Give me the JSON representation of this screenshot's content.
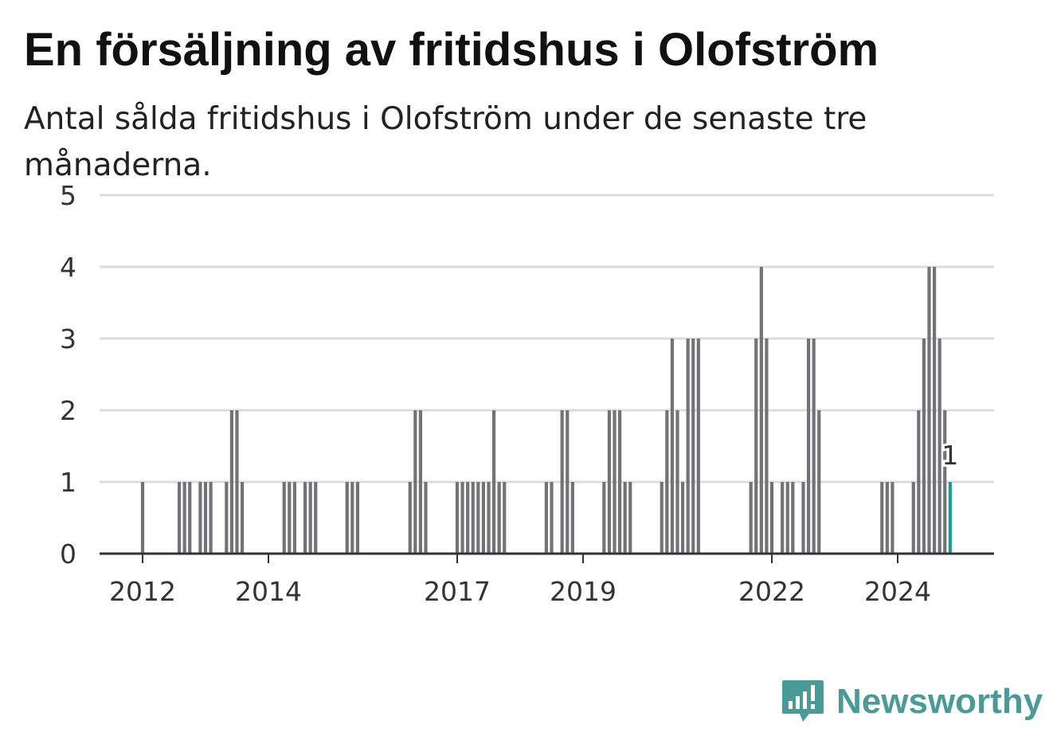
{
  "title": "En försäljning av fritidshus i Olofström",
  "subtitle": "Antal sålda fritidshus i Olofström under de senaste tre månaderna.",
  "brand": {
    "name": "Newsworthy",
    "icon": "newsworthy-logo-icon",
    "color": "#4a9a98"
  },
  "colors": {
    "bar": "#737276",
    "highlight": "#1a9e96",
    "grid": "#dddddd",
    "axis": "#333333"
  },
  "chart_data": {
    "type": "bar",
    "title": "En försäljning av fritidshus i Olofström",
    "subtitle": "Antal sålda fritidshus i Olofström under de senaste tre månaderna.",
    "xlabel": "",
    "ylabel": "",
    "ylim": [
      0,
      5
    ],
    "yticks": [
      0,
      1,
      2,
      3,
      4,
      5
    ],
    "xticks": [
      "2012",
      "2014",
      "2017",
      "2019",
      "2022",
      "2024"
    ],
    "grid": true,
    "legend": "none",
    "series": [
      {
        "values_by_month": [
          {
            "x": "2012-01",
            "y": 1
          },
          {
            "x": "2012-08",
            "y": 1
          },
          {
            "x": "2012-09",
            "y": 1
          },
          {
            "x": "2012-10",
            "y": 1
          },
          {
            "x": "2012-12",
            "y": 1
          },
          {
            "x": "2013-01",
            "y": 1
          },
          {
            "x": "2013-02",
            "y": 1
          },
          {
            "x": "2013-05",
            "y": 1
          },
          {
            "x": "2013-06",
            "y": 2
          },
          {
            "x": "2013-07",
            "y": 2
          },
          {
            "x": "2013-08",
            "y": 1
          },
          {
            "x": "2014-04",
            "y": 1
          },
          {
            "x": "2014-05",
            "y": 1
          },
          {
            "x": "2014-06",
            "y": 1
          },
          {
            "x": "2014-08",
            "y": 1
          },
          {
            "x": "2014-09",
            "y": 1
          },
          {
            "x": "2014-10",
            "y": 1
          },
          {
            "x": "2015-04",
            "y": 1
          },
          {
            "x": "2015-05",
            "y": 1
          },
          {
            "x": "2015-06",
            "y": 1
          },
          {
            "x": "2016-04",
            "y": 1
          },
          {
            "x": "2016-05",
            "y": 2
          },
          {
            "x": "2016-06",
            "y": 2
          },
          {
            "x": "2016-07",
            "y": 1
          },
          {
            "x": "2017-01",
            "y": 1
          },
          {
            "x": "2017-02",
            "y": 1
          },
          {
            "x": "2017-03",
            "y": 1
          },
          {
            "x": "2017-04",
            "y": 1
          },
          {
            "x": "2017-05",
            "y": 1
          },
          {
            "x": "2017-06",
            "y": 1
          },
          {
            "x": "2017-07",
            "y": 1
          },
          {
            "x": "2017-08",
            "y": 2
          },
          {
            "x": "2017-09",
            "y": 1
          },
          {
            "x": "2017-10",
            "y": 1
          },
          {
            "x": "2018-06",
            "y": 1
          },
          {
            "x": "2018-07",
            "y": 1
          },
          {
            "x": "2018-09",
            "y": 2
          },
          {
            "x": "2018-10",
            "y": 2
          },
          {
            "x": "2018-11",
            "y": 1
          },
          {
            "x": "2019-05",
            "y": 1
          },
          {
            "x": "2019-06",
            "y": 2
          },
          {
            "x": "2019-07",
            "y": 2
          },
          {
            "x": "2019-08",
            "y": 2
          },
          {
            "x": "2019-09",
            "y": 1
          },
          {
            "x": "2019-10",
            "y": 1
          },
          {
            "x": "2020-04",
            "y": 1
          },
          {
            "x": "2020-05",
            "y": 2
          },
          {
            "x": "2020-06",
            "y": 3
          },
          {
            "x": "2020-07",
            "y": 2
          },
          {
            "x": "2020-08",
            "y": 1
          },
          {
            "x": "2020-09",
            "y": 3
          },
          {
            "x": "2020-10",
            "y": 3
          },
          {
            "x": "2020-11",
            "y": 3
          },
          {
            "x": "2021-09",
            "y": 1
          },
          {
            "x": "2021-10",
            "y": 3
          },
          {
            "x": "2021-11",
            "y": 4
          },
          {
            "x": "2021-12",
            "y": 3
          },
          {
            "x": "2022-01",
            "y": 1
          },
          {
            "x": "2022-03",
            "y": 1
          },
          {
            "x": "2022-04",
            "y": 1
          },
          {
            "x": "2022-05",
            "y": 1
          },
          {
            "x": "2022-07",
            "y": 1
          },
          {
            "x": "2022-08",
            "y": 3
          },
          {
            "x": "2022-09",
            "y": 3
          },
          {
            "x": "2022-10",
            "y": 2
          },
          {
            "x": "2023-10",
            "y": 1
          },
          {
            "x": "2023-11",
            "y": 1
          },
          {
            "x": "2023-12",
            "y": 1
          },
          {
            "x": "2024-04",
            "y": 1
          },
          {
            "x": "2024-05",
            "y": 2
          },
          {
            "x": "2024-06",
            "y": 3
          },
          {
            "x": "2024-07",
            "y": 4
          },
          {
            "x": "2024-08",
            "y": 4
          },
          {
            "x": "2024-09",
            "y": 3
          },
          {
            "x": "2024-10",
            "y": 2
          },
          {
            "x": "2024-11",
            "y": 1,
            "highlight": true
          }
        ]
      }
    ],
    "annotations": [
      {
        "x": "2024-11",
        "text": "1"
      }
    ]
  }
}
